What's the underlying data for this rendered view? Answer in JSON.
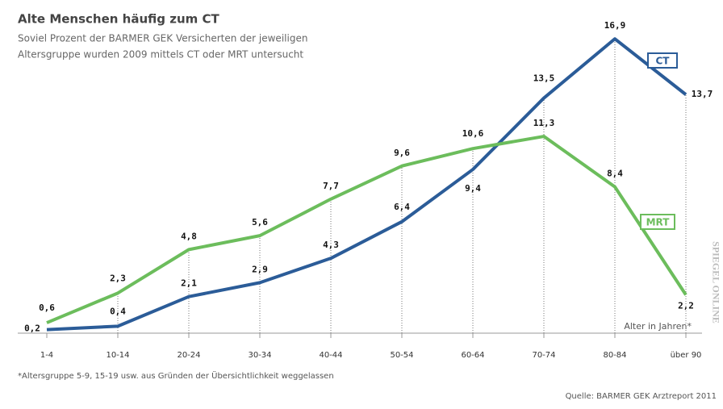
{
  "chart_data": {
    "type": "line",
    "title": "Alte Menschen häufig zum CT",
    "subtitle": [
      "Soviel Prozent der BARMER GEK Versicherten der jeweiligen",
      "Altersgruppe wurden 2009 mittels CT oder MRT untersucht"
    ],
    "categories": [
      "1-4",
      "10-14",
      "20-24",
      "30-34",
      "40-44",
      "50-54",
      "60-64",
      "70-74",
      "80-84",
      "über 90"
    ],
    "series": [
      {
        "name": "CT",
        "color": "#2b5c98",
        "values": [
          0.2,
          0.4,
          2.1,
          2.9,
          4.3,
          6.4,
          9.4,
          13.5,
          16.9,
          13.7
        ],
        "value_labels": [
          "0,2",
          "0,4",
          "2,1",
          "2,9",
          "4,3",
          "6,4",
          "9,4",
          "13,5",
          "16,9",
          "13,7"
        ]
      },
      {
        "name": "MRT",
        "color": "#6cbd5c",
        "values": [
          0.6,
          2.3,
          4.8,
          5.6,
          7.7,
          9.6,
          10.6,
          11.3,
          8.4,
          2.2
        ],
        "value_labels": [
          "0,6",
          "2,3",
          "4,8",
          "5,6",
          "7,7",
          "9,6",
          "10,6",
          "11,3",
          "8,4",
          "2,2"
        ]
      }
    ],
    "ylim": [
      0,
      17
    ],
    "x_axis_label": "Alter in Jahren*",
    "footnote": "*Altersgruppe 5-9, 15-19 usw. aus Gründen der Übersichtlichkeit weggelassen",
    "source": "Quelle: BARMER GEK Arztreport 2011",
    "watermark": "SPIEGEL ONLINE"
  }
}
